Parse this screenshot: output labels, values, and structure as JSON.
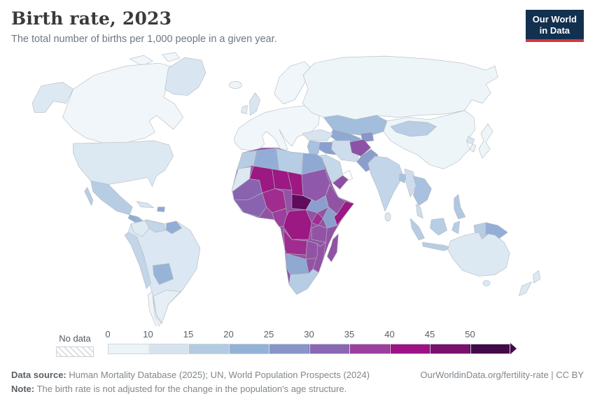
{
  "header": {
    "title": "Birth rate, 2023",
    "subtitle": "The total number of births per 1,000 people in a given year.",
    "logo_line1": "Our World",
    "logo_line2": "in Data",
    "brand_navy": "#12304f",
    "brand_red": "#d7353f"
  },
  "legend": {
    "no_data_label": "No data"
  },
  "footer": {
    "source_label": "Data source:",
    "source_text": " Human Mortality Database (2025); UN, World Population Prospects (2024)",
    "note_label": "Note:",
    "note_text": " The birth rate is not adjusted for the change in the population's age structure.",
    "link": "OurWorldinData.org/fertility-rate | CC BY"
  },
  "chart_data": {
    "type": "heatmap",
    "subtype": "choropleth-world-map",
    "title": "Birth rate, 2023",
    "unit": "births per 1,000 people",
    "legend_position": "bottom",
    "ticks": [
      "0",
      "10",
      "15",
      "20",
      "25",
      "30",
      "35",
      "40",
      "45",
      "50"
    ],
    "bins": [
      {
        "range": "0-10",
        "color": "#edf4f8"
      },
      {
        "range": "10-15",
        "color": "#d7e4f0"
      },
      {
        "range": "15-20",
        "color": "#b3cbe2"
      },
      {
        "range": "20-25",
        "color": "#93b2d7"
      },
      {
        "range": "25-30",
        "color": "#8795c8"
      },
      {
        "range": "30-35",
        "color": "#8a67b2"
      },
      {
        "range": "35-40",
        "color": "#9c3f9e"
      },
      {
        "range": "40-45",
        "color": "#9e1285"
      },
      {
        "range": "45-50",
        "color": "#7b106e"
      },
      {
        "range": "50+",
        "color": "#430a49",
        "arrow": true
      }
    ],
    "no_data_style": "white-diagonal-hatch",
    "regions": {
      "canada": {
        "value": "0-10",
        "color": "#f0f6f9"
      },
      "arctic-islands": {
        "value": "0-10",
        "color": "#f0f6f9"
      },
      "greenland": {
        "value": "10-15",
        "color": "#d9e6f1"
      },
      "alaska": {
        "value": "10-15",
        "color": "#dce9f3"
      },
      "usa": {
        "value": "10-15",
        "color": "#dce9f3"
      },
      "mexico": {
        "value": "15-20",
        "color": "#b7cde4"
      },
      "baja": {
        "value": "15-20",
        "color": "#b7cde4"
      },
      "cuba": {
        "value": "10-15",
        "color": "#d9e6f1"
      },
      "hispaniola": {
        "value": "20-25",
        "color": "#8fa9d0"
      },
      "guatemala": {
        "value": "20-25",
        "color": "#8fadd6"
      },
      "central-america": {
        "value": "20-25",
        "color": "#93b2d7"
      },
      "colombia": {
        "value": "10-15",
        "color": "#dfeaf3"
      },
      "venezuela": {
        "value": "15-20",
        "color": "#c2d5e9"
      },
      "guianas": {
        "value": "20-25",
        "color": "#93aed6"
      },
      "ecuador-peru": {
        "value": "15-20",
        "color": "#c2d5e9"
      },
      "bolivia": {
        "value": "20-25",
        "color": "#97b4d8"
      },
      "brazil": {
        "value": "10-15",
        "color": "#dbe7f2"
      },
      "argentina": {
        "value": "10-15",
        "color": "#e7eff6"
      },
      "chile": {
        "value": "0-10",
        "color": "#eff5f9"
      },
      "iceland": {
        "value": "0-10",
        "color": "#eef4f8"
      },
      "uk": {
        "value": "10-15",
        "color": "#d9e6f1"
      },
      "ireland": {
        "value": "10-15",
        "color": "#dfeaf3"
      },
      "europe": {
        "value": "0-10",
        "color": "#f0f6f9"
      },
      "scandinavia": {
        "value": "0-10",
        "color": "#f0f6f9"
      },
      "russia": {
        "value": "0-10",
        "color": "#eef5f8"
      },
      "kazakhstan": {
        "value": "20-25",
        "color": "#a3bedd"
      },
      "uzbekistan": {
        "value": "25-30",
        "color": "#8fa9d0"
      },
      "tajikistan": {
        "value": "25-30",
        "color": "#8795c8"
      },
      "china": {
        "value": "0-10",
        "color": "#eef5f8"
      },
      "mongolia": {
        "value": "15-20",
        "color": "#b9cde5"
      },
      "japan": {
        "value": "0-10",
        "color": "#eef5f8"
      },
      "korea": {
        "value": "0-10",
        "color": "#eaf1f6"
      },
      "north-korea": {
        "value": "10-15",
        "color": "#d9e6f1"
      },
      "turkey": {
        "value": "15-20",
        "color": "#d7e4f0"
      },
      "syria": {
        "value": "20-25",
        "color": "#a9c0de"
      },
      "iraq": {
        "value": "25-30",
        "color": "#8b9fce"
      },
      "iran": {
        "value": "15-20",
        "color": "#cddded"
      },
      "saudi-arabia": {
        "value": "15-20",
        "color": "#c5d8ea"
      },
      "yemen": {
        "value": "30-35",
        "color": "#8d4fa4"
      },
      "oman": {
        "value": "no-data",
        "color": "#ffffff"
      },
      "afghanistan": {
        "value": "30-35",
        "color": "#8d52a6"
      },
      "pakistan": {
        "value": "25-30",
        "color": "#8b9ecb"
      },
      "india": {
        "value": "15-20",
        "color": "#c2d5e9"
      },
      "sri-lanka": {
        "value": "10-15",
        "color": "#dbe7f2"
      },
      "bangladesh": {
        "value": "20-25",
        "color": "#a9c0de"
      },
      "myanmar": {
        "value": "15-20",
        "color": "#cddded"
      },
      "indochina": {
        "value": "20-25",
        "color": "#a9c0de"
      },
      "malaysia": {
        "value": "15-20",
        "color": "#cddded"
      },
      "indonesia-west": {
        "value": "15-20",
        "color": "#b7cde4"
      },
      "borneo": {
        "value": "15-20",
        "color": "#b7cde4"
      },
      "java": {
        "value": "15-20",
        "color": "#b7cde4"
      },
      "sulawesi": {
        "value": "15-20",
        "color": "#b7cde4"
      },
      "philippines": {
        "value": "20-25",
        "color": "#b0c8e2"
      },
      "west-papua": {
        "value": "15-20",
        "color": "#b7cde4"
      },
      "papua-new-guinea": {
        "value": "25-30",
        "color": "#93aed6"
      },
      "africa-base": {
        "value": "30-35",
        "color": "#9353a5"
      },
      "morocco": {
        "value": "15-20",
        "color": "#b7cde4"
      },
      "western-sahara": {
        "value": "10-15",
        "color": "#dce9f3"
      },
      "algeria": {
        "value": "20-25",
        "color": "#93aed6"
      },
      "libya": {
        "value": "15-20",
        "color": "#b7cde4"
      },
      "egypt": {
        "value": "20-25",
        "color": "#8fa9d3"
      },
      "mauritania-senegal": {
        "value": "30-35",
        "color": "#8a63b0"
      },
      "mali": {
        "value": "40-45",
        "color": "#9c1883"
      },
      "niger": {
        "value": "40-45",
        "color": "#9c1883"
      },
      "chad": {
        "value": "40-45",
        "color": "#9c1883"
      },
      "sudan": {
        "value": "30-35",
        "color": "#9058ab"
      },
      "west-africa": {
        "value": "30-35",
        "color": "#8a63b0"
      },
      "nigeria": {
        "value": "35-40",
        "color": "#a12c90"
      },
      "cameroon-gabon": {
        "value": "35-40",
        "color": "#9c3f9e"
      },
      "car": {
        "value": "45-50",
        "color": "#5f0b5e"
      },
      "south-sudan": {
        "value": "25-30",
        "color": "#8b9fce"
      },
      "ethiopia": {
        "value": "30-35",
        "color": "#9353a5"
      },
      "somalia": {
        "value": "40-45",
        "color": "#9c1883"
      },
      "kenya": {
        "value": "25-30",
        "color": "#8ba0cc"
      },
      "uganda": {
        "value": "35-40",
        "color": "#a12c90"
      },
      "drc": {
        "value": "40-45",
        "color": "#9c1883"
      },
      "tanzania": {
        "value": "30-35",
        "color": "#9353a5"
      },
      "angola": {
        "value": "35-40",
        "color": "#a12c90"
      },
      "zambia-zimbabwe": {
        "value": "30-35",
        "color": "#9353a5"
      },
      "mozambique": {
        "value": "30-35",
        "color": "#9353a5"
      },
      "namibia-botswana": {
        "value": "25-30",
        "color": "#8fa9d0"
      },
      "south-africa": {
        "value": "15-20",
        "color": "#b7cde4"
      },
      "madagascar": {
        "value": "30-35",
        "color": "#9353a5"
      },
      "australia": {
        "value": "10-15",
        "color": "#dce9f3"
      },
      "tasmania": {
        "value": "10-15",
        "color": "#dce9f3"
      },
      "new-zealand-north": {
        "value": "10-15",
        "color": "#dce9f3"
      },
      "new-zealand-south": {
        "value": "10-15",
        "color": "#dce9f3"
      }
    }
  }
}
